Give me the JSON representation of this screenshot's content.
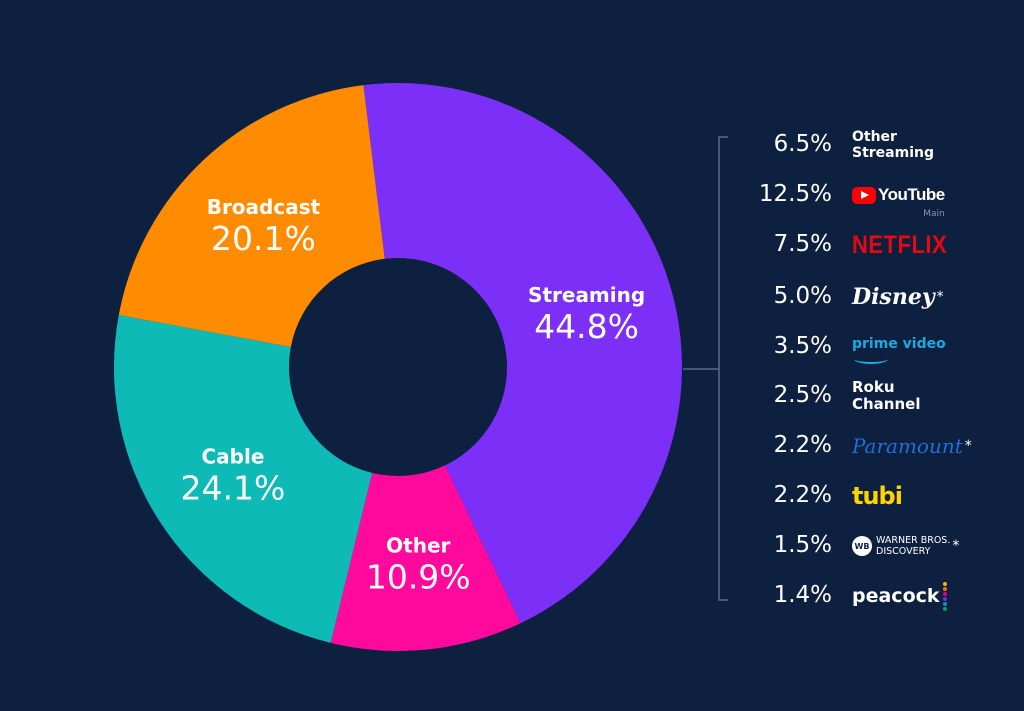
{
  "colors": {
    "background": "#0e2040",
    "streaming": "#7b2ff7",
    "broadcast": "#ff8c00",
    "cable": "#0dbab5",
    "other": "#ff0a9c",
    "bracket": "#5a6b85"
  },
  "chart_data": {
    "type": "pie",
    "donut": true,
    "categories": [
      "Streaming",
      "Other",
      "Cable",
      "Broadcast"
    ],
    "values": [
      44.8,
      10.9,
      24.1,
      20.1
    ],
    "labels": [
      "44.8%",
      "10.9%",
      "24.1%",
      "20.1%"
    ],
    "breakdown": {
      "of": "Streaming",
      "items": [
        {
          "label": "Other Streaming",
          "value": 6.5,
          "display": "6.5%",
          "logo": "other-streaming-text"
        },
        {
          "label": "YouTube",
          "sublabel": "Main",
          "value": 12.5,
          "display": "12.5%",
          "logo": "youtube-logo"
        },
        {
          "label": "NETFLIX",
          "value": 7.5,
          "display": "7.5%",
          "logo": "netflix-logo"
        },
        {
          "label": "Disney",
          "value": 5.0,
          "display": "5.0%",
          "logo": "disney-logo",
          "asterisk": "*"
        },
        {
          "label": "prime video",
          "value": 3.5,
          "display": "3.5%",
          "logo": "prime-video-logo"
        },
        {
          "label": "Roku Channel",
          "value": 2.5,
          "display": "2.5%",
          "logo": "roku-channel-logo"
        },
        {
          "label": "Paramount",
          "value": 2.2,
          "display": "2.2%",
          "logo": "paramount-logo",
          "asterisk": "*"
        },
        {
          "label": "tubi",
          "value": 2.2,
          "display": "2.2%",
          "logo": "tubi-logo"
        },
        {
          "label": "WARNER BROS. DISCOVERY",
          "value": 1.5,
          "display": "1.5%",
          "logo": "warner-bros-discovery-logo",
          "asterisk": "*"
        },
        {
          "label": "peacock",
          "value": 1.4,
          "display": "1.4%",
          "logo": "peacock-logo"
        }
      ]
    }
  },
  "logos": {
    "other_streaming_line1": "Other",
    "other_streaming_line2": "Streaming",
    "youtube": "YouTube",
    "youtube_sub": "Main",
    "netflix": "NETFLIX",
    "disney": "Disney",
    "prime": "prime video",
    "roku_line1": "Roku",
    "roku_line2": "Channel",
    "paramount": "Paramount",
    "tubi": "tubi",
    "wbd_line1": "WARNER BROS.",
    "wbd_line2": "DISCOVERY",
    "wb_badge": "WB",
    "peacock": "peacock",
    "asterisk": "*"
  }
}
